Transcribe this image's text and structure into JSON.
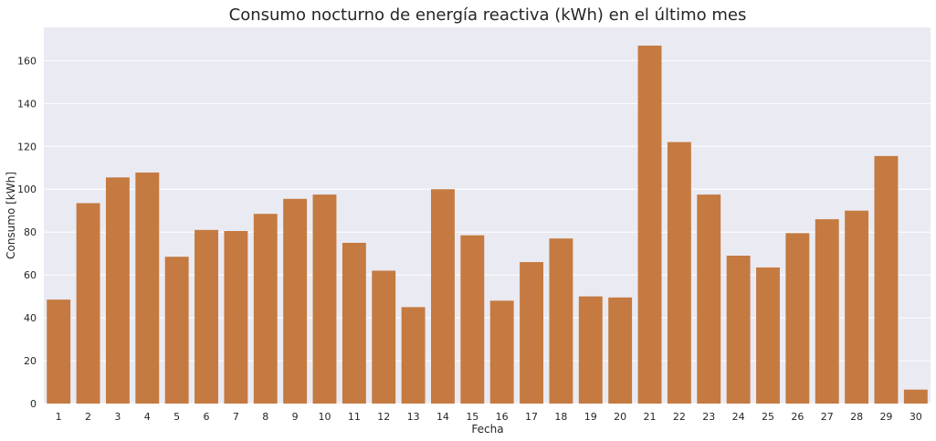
{
  "chart_data": {
    "type": "bar",
    "title": "Consumo nocturno de energía reactiva (kWh) en el último mes",
    "xlabel": "Fecha",
    "ylabel": "Consumo [kWh]",
    "categories": [
      "1",
      "2",
      "3",
      "4",
      "5",
      "6",
      "7",
      "8",
      "9",
      "10",
      "11",
      "12",
      "13",
      "14",
      "15",
      "16",
      "17",
      "18",
      "19",
      "20",
      "21",
      "22",
      "23",
      "24",
      "25",
      "26",
      "27",
      "28",
      "29",
      "30"
    ],
    "values": [
      48.5,
      93.5,
      105.5,
      107.8,
      68.5,
      81,
      80.5,
      88.5,
      95.5,
      97.5,
      75,
      62,
      45,
      100,
      78.5,
      48,
      66,
      77,
      50,
      49.5,
      167,
      122,
      97.5,
      69,
      63.5,
      79.5,
      86,
      90,
      115.5,
      6.5
    ],
    "yticks": [
      0,
      20,
      40,
      60,
      80,
      100,
      120,
      140,
      160
    ],
    "ylim": [
      0,
      175.5
    ],
    "grid": true,
    "legend": "none",
    "colors": {
      "bar": "#c47a40",
      "plot_background": "#eaeaf2",
      "grid": "#ffffff",
      "text": "#262626"
    }
  }
}
